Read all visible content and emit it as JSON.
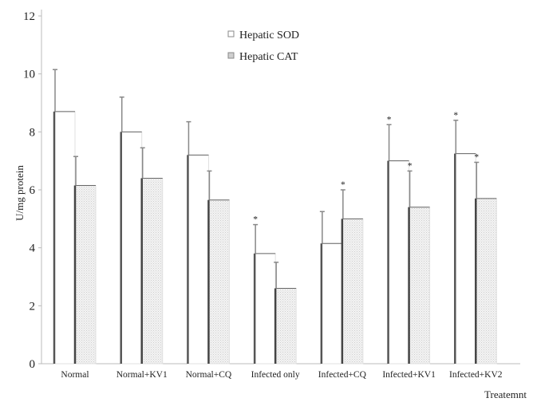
{
  "chart_data": {
    "type": "bar",
    "title": "",
    "xlabel": "Treatemnt",
    "ylabel": "U/mg protein",
    "ylim": [
      0,
      12
    ],
    "yticks": [
      0,
      2,
      4,
      6,
      8,
      10,
      12
    ],
    "grid": false,
    "legend_position": "top-center",
    "categories": [
      "Normal",
      "Normal+KV1",
      "Normal+CQ",
      "Infected only",
      "Infected+CQ",
      "Infected+KV1",
      "Infected+KV2"
    ],
    "series": [
      {
        "name": "Hepatic SOD",
        "values": [
          8.7,
          8.0,
          7.2,
          3.8,
          4.15,
          7.0,
          7.25
        ],
        "errors": [
          1.45,
          1.2,
          1.15,
          1.0,
          1.1,
          1.25,
          1.15
        ],
        "markers": [
          "",
          "",
          "",
          "*",
          "",
          "*",
          "*"
        ],
        "color": "#ffffff",
        "edge_color": "#555555"
      },
      {
        "name": "Hepatic CAT",
        "values": [
          6.15,
          6.4,
          5.65,
          2.6,
          5.0,
          5.4,
          5.7
        ],
        "errors": [
          1.0,
          1.05,
          1.0,
          0.9,
          1.0,
          1.25,
          1.25
        ],
        "markers": [
          "",
          "",
          "",
          "",
          "*",
          "*",
          "*"
        ],
        "color": "#e8e8e8",
        "edge_color": "#444444"
      }
    ]
  }
}
